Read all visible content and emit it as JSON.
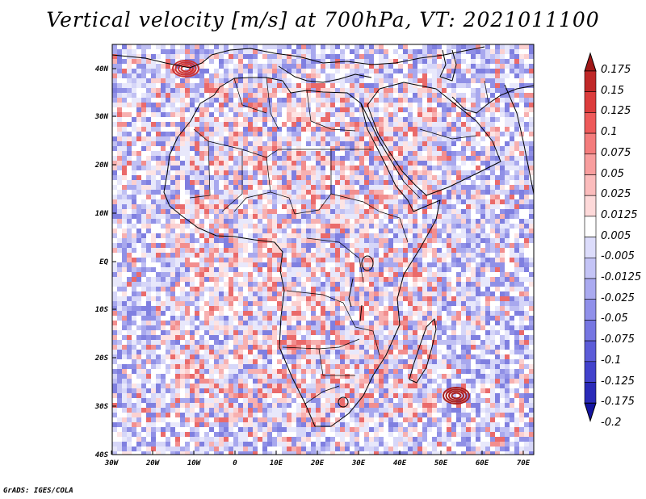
{
  "title": "Vertical velocity [m/s] at 700hPa, VT: 2021011100",
  "credit": "GrADS: IGES/COLA",
  "lat_ticks": [
    "40N",
    "30N",
    "20N",
    "10N",
    "EQ",
    "10S",
    "20S",
    "30S",
    "40S"
  ],
  "lon_ticks": [
    "30W",
    "20W",
    "10W",
    "0",
    "10E",
    "20E",
    "30E",
    "40E",
    "50E",
    "60E",
    "70E"
  ],
  "colorbar": {
    "labels": [
      "0.175",
      "0.15",
      "0.125",
      "0.1",
      "0.075",
      "0.05",
      "0.025",
      "0.0125",
      "0.005",
      "-0.005",
      "-0.0125",
      "-0.025",
      "-0.05",
      "-0.075",
      "-0.1",
      "-0.125",
      "-0.175",
      "-0.2"
    ],
    "colors": [
      "#a01818",
      "#c02828",
      "#dc3c3c",
      "#ee5a5a",
      "#f47c7c",
      "#f89e9e",
      "#fbbcbc",
      "#fdd9d9",
      "#ffffff",
      "#dcdcfb",
      "#c4c4f6",
      "#aaaaf0",
      "#9090ea",
      "#7676e2",
      "#5c5cd8",
      "#4242cc",
      "#2a2ab8",
      "#1414a0"
    ]
  },
  "colors": {
    "background_field": "#e9e9fb",
    "coast": "#000000",
    "red_high": "#e05050",
    "blue_high": "#6060d8"
  }
}
